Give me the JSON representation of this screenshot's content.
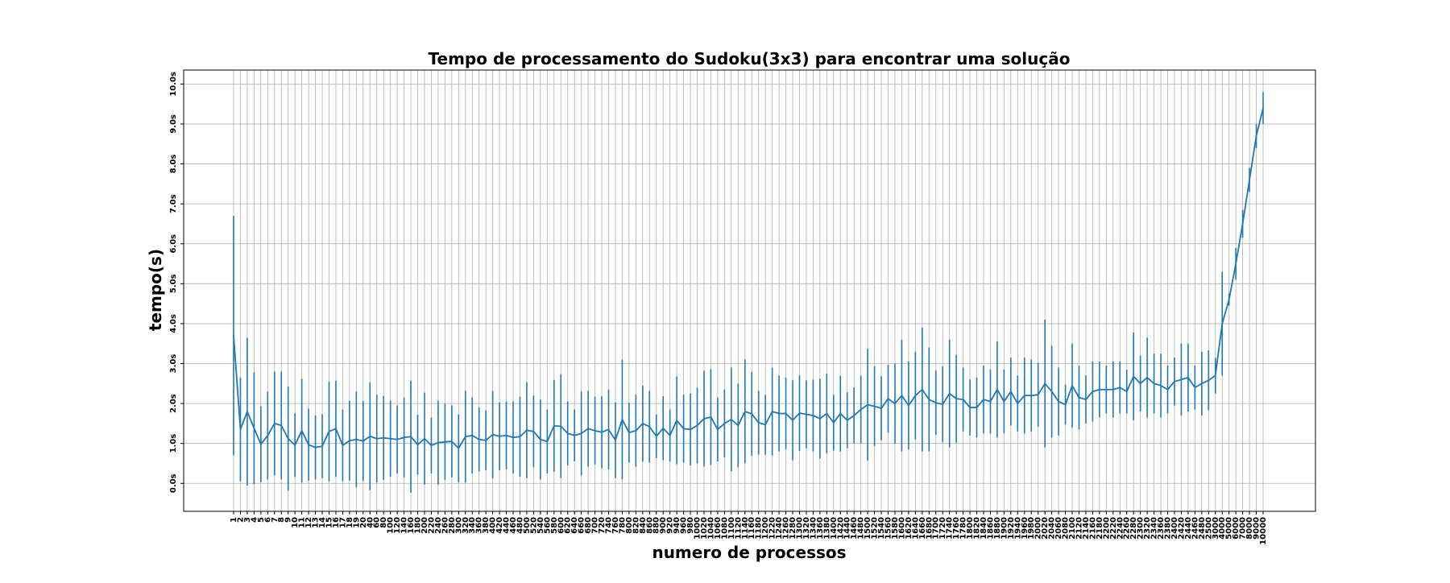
{
  "chart_data": {
    "type": "line",
    "title": "Tempo de processamento do Sudoku(3x3) para encontrar uma solução",
    "xlabel": "numero de processos",
    "ylabel": "tempo(s)",
    "ylim": [
      -0.7,
      10.35
    ],
    "grid": true,
    "error_bars": true,
    "series_color": "#1f77b4",
    "yticks": [
      0,
      1,
      2,
      3,
      4,
      5,
      6,
      7,
      8,
      9,
      10
    ],
    "ytick_labels": [
      "0.0s",
      "1.0s",
      "2.0s",
      "3.0s",
      "4.0s",
      "5.0s",
      "6.0s",
      "7.0s",
      "8.0s",
      "9.0s",
      "10.0s"
    ],
    "categories": [
      "1",
      "2",
      "3",
      "4",
      "5",
      "6",
      "7",
      "8",
      "9",
      "10",
      "11",
      "12",
      "13",
      "14",
      "15",
      "16",
      "17",
      "18",
      "19",
      "20",
      "40",
      "60",
      "80",
      "100",
      "120",
      "140",
      "160",
      "180",
      "200",
      "220",
      "240",
      "260",
      "280",
      "300",
      "320",
      "340",
      "360",
      "380",
      "400",
      "420",
      "440",
      "460",
      "480",
      "500",
      "520",
      "540",
      "560",
      "580",
      "600",
      "620",
      "640",
      "660",
      "680",
      "700",
      "720",
      "740",
      "760",
      "780",
      "800",
      "820",
      "840",
      "860",
      "880",
      "900",
      "920",
      "940",
      "960",
      "980",
      "1000",
      "1020",
      "1040",
      "1060",
      "1080",
      "1100",
      "1120",
      "1140",
      "1160",
      "1180",
      "1200",
      "1220",
      "1240",
      "1260",
      "1280",
      "1300",
      "1320",
      "1340",
      "1360",
      "1380",
      "1400",
      "1420",
      "1440",
      "1460",
      "1480",
      "1500",
      "1520",
      "1540",
      "1560",
      "1580",
      "1600",
      "1620",
      "1640",
      "1660",
      "1680",
      "1700",
      "1720",
      "1740",
      "1760",
      "1780",
      "1800",
      "1820",
      "1840",
      "1860",
      "1880",
      "1900",
      "1920",
      "1940",
      "1960",
      "1980",
      "2000",
      "2020",
      "2040",
      "2060",
      "2080",
      "2100",
      "2120",
      "2140",
      "2160",
      "2180",
      "2200",
      "2220",
      "2240",
      "2260",
      "2280",
      "2300",
      "2320",
      "2340",
      "2360",
      "2380",
      "2400",
      "2420",
      "2440",
      "2460",
      "2480",
      "2500",
      "3000",
      "4000",
      "5000",
      "6000",
      "7000",
      "8000",
      "9000",
      "10000"
    ],
    "values": [
      3.7,
      1.35,
      1.8,
      1.38,
      0.98,
      1.2,
      1.5,
      1.45,
      1.12,
      0.96,
      1.32,
      0.97,
      0.9,
      0.93,
      1.3,
      1.37,
      0.95,
      1.07,
      1.1,
      1.06,
      1.18,
      1.12,
      1.14,
      1.12,
      1.1,
      1.15,
      1.17,
      0.97,
      1.12,
      0.95,
      1.02,
      1.04,
      1.05,
      0.88,
      1.17,
      1.2,
      1.1,
      1.08,
      1.22,
      1.18,
      1.2,
      1.15,
      1.17,
      1.33,
      1.3,
      1.1,
      1.05,
      1.44,
      1.43,
      1.25,
      1.2,
      1.25,
      1.37,
      1.32,
      1.28,
      1.35,
      1.08,
      1.6,
      1.27,
      1.32,
      1.5,
      1.42,
      1.18,
      1.38,
      1.2,
      1.58,
      1.37,
      1.35,
      1.45,
      1.62,
      1.66,
      1.35,
      1.5,
      1.6,
      1.45,
      1.8,
      1.74,
      1.52,
      1.47,
      1.8,
      1.75,
      1.75,
      1.58,
      1.76,
      1.73,
      1.7,
      1.62,
      1.75,
      1.52,
      1.75,
      1.58,
      1.7,
      1.85,
      1.97,
      1.93,
      1.88,
      2.12,
      2.0,
      2.2,
      1.95,
      2.2,
      2.35,
      2.1,
      2.02,
      1.98,
      2.25,
      2.12,
      2.1,
      1.9,
      1.9,
      2.1,
      2.05,
      2.35,
      2.05,
      2.3,
      2.0,
      2.2,
      2.2,
      2.22,
      2.5,
      2.3,
      2.05,
      1.97,
      2.45,
      2.15,
      2.1,
      2.3,
      2.35,
      2.35,
      2.35,
      2.4,
      2.3,
      2.68,
      2.5,
      2.65,
      2.5,
      2.45,
      2.35,
      2.55,
      2.6,
      2.65,
      2.4,
      2.5,
      2.58,
      2.7,
      4.0,
      4.6,
      5.5,
      6.5,
      7.6,
      8.7,
      9.4
    ],
    "errors": [
      3.0,
      1.3,
      1.85,
      1.4,
      0.95,
      1.1,
      1.3,
      1.35,
      1.3,
      0.8,
      1.3,
      0.9,
      0.8,
      0.8,
      1.25,
      1.2,
      0.9,
      1.0,
      1.2,
      1.0,
      1.35,
      1.1,
      1.05,
      0.95,
      0.85,
      1.0,
      1.4,
      0.75,
      1.15,
      0.7,
      1.05,
      0.95,
      0.9,
      0.85,
      1.15,
      0.95,
      0.8,
      0.75,
      1.1,
      0.85,
      0.85,
      0.9,
      1.0,
      1.2,
      0.9,
      1.0,
      0.8,
      1.15,
      1.3,
      0.8,
      0.65,
      1.05,
      0.95,
      0.85,
      0.9,
      1.0,
      0.95,
      1.5,
      0.75,
      0.9,
      0.95,
      0.9,
      0.55,
      0.8,
      0.65,
      1.1,
      0.85,
      0.9,
      0.95,
      1.2,
      1.2,
      0.8,
      0.85,
      1.3,
      1.05,
      1.3,
      1.05,
      0.8,
      0.75,
      1.1,
      0.95,
      0.9,
      1.0,
      0.95,
      0.85,
      0.9,
      1.0,
      1.0,
      0.7,
      0.95,
      0.7,
      0.7,
      0.85,
      1.4,
      1.0,
      0.8,
      0.85,
      1.0,
      1.4,
      1.1,
      1.1,
      1.55,
      1.3,
      0.8,
      0.95,
      1.35,
      1.1,
      0.8,
      0.7,
      0.75,
      0.85,
      0.8,
      1.2,
      0.8,
      0.85,
      0.7,
      0.95,
      0.9,
      0.8,
      1.6,
      1.15,
      0.85,
      0.5,
      1.05,
      0.8,
      0.6,
      0.75,
      0.7,
      0.6,
      0.7,
      0.65,
      0.55,
      1.1,
      0.7,
      1.0,
      0.75,
      0.8,
      0.6,
      0.6,
      0.9,
      0.85,
      0.55,
      0.8,
      0.75,
      0.45,
      1.3,
      0.15,
      0.4,
      0.35,
      0.3,
      0.3,
      0.4
    ]
  }
}
